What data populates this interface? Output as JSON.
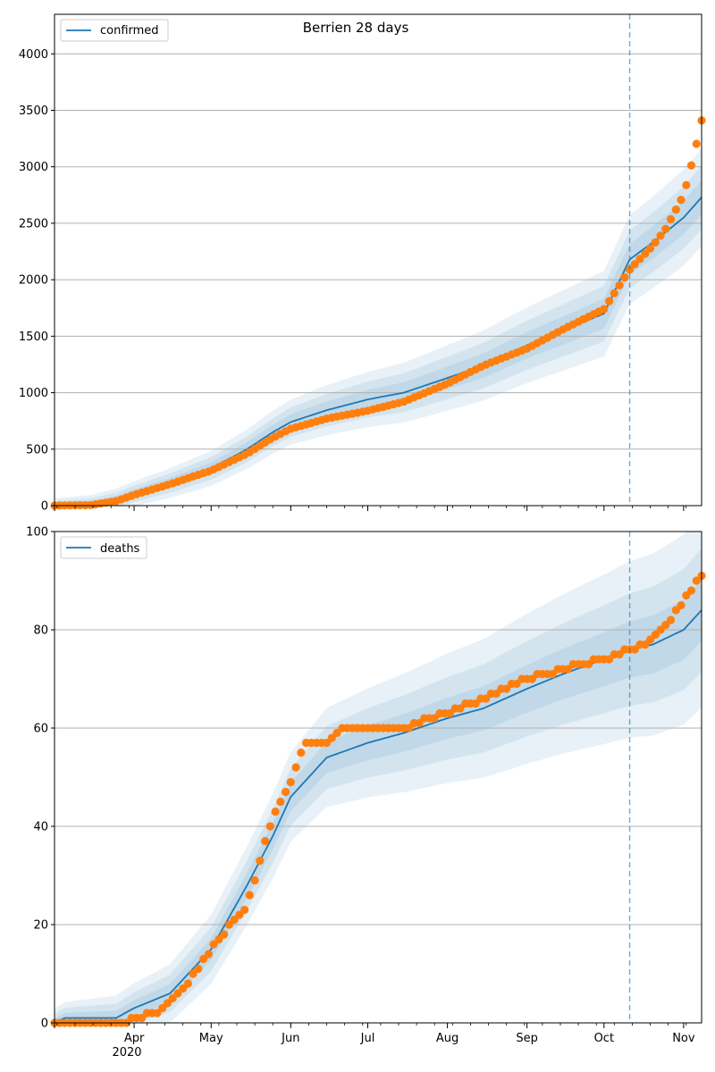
{
  "figure": {
    "title": "Berrien 28 days"
  },
  "colors": {
    "model_line": "#1f77b4",
    "observed_points": "#ff7f0e",
    "band": "#1f77b4",
    "grid": "#b0b0b0",
    "forecast_marker": "#1f77b4"
  },
  "chart_data": [
    {
      "type": "line",
      "legend": {
        "label": "confirmed",
        "placement": "top-left"
      },
      "ylim": [
        0,
        4350
      ],
      "yticks": [
        0,
        500,
        1000,
        1500,
        2000,
        2500,
        3000,
        3500,
        4000
      ],
      "grid": "horizontal",
      "forecast_start": "2020-10-11",
      "model_line": [
        [
          "2020-03-01",
          0
        ],
        [
          "2020-03-15",
          8
        ],
        [
          "2020-03-25",
          50
        ],
        [
          "2020-04-01",
          105
        ],
        [
          "2020-04-15",
          200
        ],
        [
          "2020-05-01",
          330
        ],
        [
          "2020-05-15",
          500
        ],
        [
          "2020-05-25",
          650
        ],
        [
          "2020-06-01",
          740
        ],
        [
          "2020-06-15",
          845
        ],
        [
          "2020-07-01",
          940
        ],
        [
          "2020-07-15",
          1000
        ],
        [
          "2020-08-01",
          1130
        ],
        [
          "2020-08-15",
          1240
        ],
        [
          "2020-09-01",
          1420
        ],
        [
          "2020-09-15",
          1550
        ],
        [
          "2020-10-01",
          1700
        ],
        [
          "2020-10-11",
          2180
        ],
        [
          "2020-10-20",
          2330
        ],
        [
          "2020-11-01",
          2550
        ],
        [
          "2020-11-08",
          2730
        ]
      ],
      "observed": [
        [
          "2020-03-01",
          0
        ],
        [
          "2020-03-15",
          5
        ],
        [
          "2020-03-25",
          40
        ],
        [
          "2020-04-01",
          95
        ],
        [
          "2020-04-15",
          190
        ],
        [
          "2020-05-01",
          310
        ],
        [
          "2020-05-15",
          460
        ],
        [
          "2020-05-25",
          600
        ],
        [
          "2020-06-01",
          680
        ],
        [
          "2020-06-15",
          770
        ],
        [
          "2020-07-01",
          840
        ],
        [
          "2020-07-15",
          920
        ],
        [
          "2020-08-01",
          1080
        ],
        [
          "2020-08-15",
          1240
        ],
        [
          "2020-09-01",
          1390
        ],
        [
          "2020-09-15",
          1560
        ],
        [
          "2020-10-01",
          1740
        ],
        [
          "2020-10-11",
          2090
        ],
        [
          "2020-10-20",
          2300
        ],
        [
          "2020-10-25",
          2450
        ],
        [
          "2020-11-01",
          2750
        ],
        [
          "2020-11-05",
          3100
        ],
        [
          "2020-11-08",
          3410
        ]
      ]
    },
    {
      "type": "line",
      "legend": {
        "label": "deaths",
        "placement": "top-left"
      },
      "ylim": [
        0,
        100
      ],
      "yticks": [
        0,
        20,
        40,
        60,
        80,
        100
      ],
      "xticks": [
        "Apr",
        "May",
        "Jun",
        "Jul",
        "Aug",
        "Sep",
        "Oct",
        "Nov"
      ],
      "xtick_dates": [
        "2020-04-01",
        "2020-05-01",
        "2020-06-01",
        "2020-07-01",
        "2020-08-01",
        "2020-09-01",
        "2020-10-01",
        "2020-11-01"
      ],
      "year_label": "2020",
      "grid": "horizontal",
      "forecast_start": "2020-10-11",
      "model_line": [
        [
          "2020-03-01",
          0
        ],
        [
          "2020-03-05",
          1
        ],
        [
          "2020-03-25",
          1
        ],
        [
          "2020-04-01",
          3
        ],
        [
          "2020-04-15",
          6
        ],
        [
          "2020-05-01",
          15
        ],
        [
          "2020-05-15",
          28
        ],
        [
          "2020-05-25",
          38
        ],
        [
          "2020-06-01",
          46
        ],
        [
          "2020-06-15",
          54
        ],
        [
          "2020-07-01",
          57
        ],
        [
          "2020-07-15",
          59
        ],
        [
          "2020-08-01",
          62
        ],
        [
          "2020-08-15",
          64
        ],
        [
          "2020-09-01",
          68
        ],
        [
          "2020-09-15",
          71
        ],
        [
          "2020-10-01",
          74
        ],
        [
          "2020-10-11",
          76
        ],
        [
          "2020-10-20",
          77
        ],
        [
          "2020-11-01",
          80
        ],
        [
          "2020-11-08",
          84
        ]
      ],
      "observed": [
        [
          "2020-03-01",
          0
        ],
        [
          "2020-03-29",
          0
        ],
        [
          "2020-04-01",
          1
        ],
        [
          "2020-04-10",
          2
        ],
        [
          "2020-04-20",
          7
        ],
        [
          "2020-05-01",
          15
        ],
        [
          "2020-05-15",
          24
        ],
        [
          "2020-05-20",
          33
        ],
        [
          "2020-05-25",
          42
        ],
        [
          "2020-06-01",
          49
        ],
        [
          "2020-06-06",
          57
        ],
        [
          "2020-06-15",
          57
        ],
        [
          "2020-06-20",
          60
        ],
        [
          "2020-07-15",
          60
        ],
        [
          "2020-07-20",
          61
        ],
        [
          "2020-08-01",
          63
        ],
        [
          "2020-08-15",
          66
        ],
        [
          "2020-09-01",
          70
        ],
        [
          "2020-09-15",
          72
        ],
        [
          "2020-10-01",
          74
        ],
        [
          "2020-10-11",
          76
        ],
        [
          "2020-10-20",
          78
        ],
        [
          "2020-10-25",
          81
        ],
        [
          "2020-11-01",
          86
        ],
        [
          "2020-11-05",
          89
        ],
        [
          "2020-11-08",
          91
        ]
      ]
    }
  ]
}
